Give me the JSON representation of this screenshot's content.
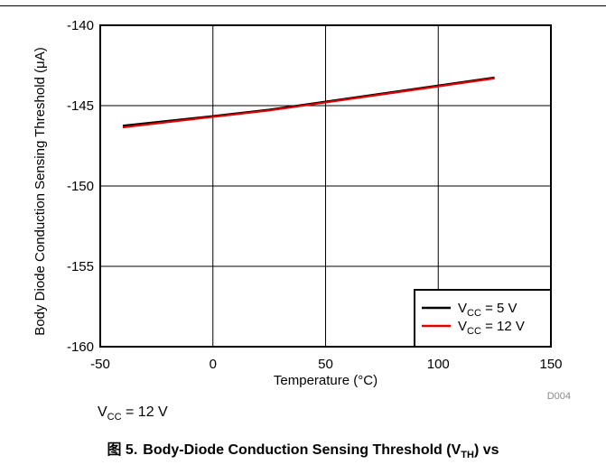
{
  "chart_data": {
    "type": "line",
    "title": "",
    "xlabel": "Temperature (°C)",
    "ylabel": "Body Diode Conduction Sensing Threshold (μA)",
    "xlim": [
      -50,
      150
    ],
    "ylim": [
      -160,
      -140
    ],
    "xticks": [
      "-50",
      "0",
      "50",
      "100",
      "150"
    ],
    "yticks": [
      "-140",
      "-145",
      "-150",
      "-155",
      "-160"
    ],
    "grid": true,
    "legend_position": "bottom-right",
    "series": [
      {
        "name": "VCC = 5 V",
        "name_main": "V",
        "name_sub": "CC",
        "name_rest": " = 5 V",
        "color": "#000000",
        "x": [
          -40,
          0,
          25,
          50,
          85,
          125
        ],
        "values": [
          -146.25,
          -145.65,
          -145.25,
          -144.75,
          -144.05,
          -143.25
        ]
      },
      {
        "name": "VCC = 12 V",
        "name_main": "V",
        "name_sub": "CC",
        "name_rest": " = 12 V",
        "color": "#e00000",
        "x": [
          -40,
          0,
          25,
          50,
          85,
          125
        ],
        "values": [
          -146.35,
          -145.7,
          -145.3,
          -144.8,
          -144.1,
          -143.3
        ]
      }
    ],
    "watermark": "D004"
  },
  "conditions": {
    "main": "V",
    "sub": "CC",
    "rest": " = 12 V"
  },
  "caption": {
    "label": "图 5.",
    "text_a": "Body-Diode Conduction Sensing Threshold (V",
    "sub": "TH",
    "text_b": ") vs"
  }
}
